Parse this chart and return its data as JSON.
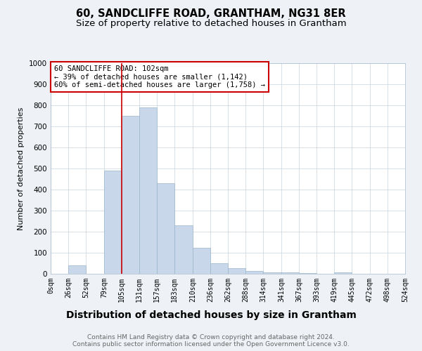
{
  "title": "60, SANDCLIFFE ROAD, GRANTHAM, NG31 8ER",
  "subtitle": "Size of property relative to detached houses in Grantham",
  "xlabel": "Distribution of detached houses by size in Grantham",
  "ylabel": "Number of detached properties",
  "bar_values": [
    0,
    40,
    0,
    490,
    750,
    790,
    430,
    230,
    125,
    50,
    28,
    12,
    8,
    8,
    5,
    0,
    8,
    0,
    0,
    0
  ],
  "bin_edges": [
    0,
    26,
    52,
    79,
    105,
    131,
    157,
    183,
    210,
    236,
    262,
    288,
    314,
    341,
    367,
    393,
    419,
    445,
    472,
    498,
    524
  ],
  "tick_labels": [
    "0sqm",
    "26sqm",
    "52sqm",
    "79sqm",
    "105sqm",
    "131sqm",
    "157sqm",
    "183sqm",
    "210sqm",
    "236sqm",
    "262sqm",
    "288sqm",
    "314sqm",
    "341sqm",
    "367sqm",
    "393sqm",
    "419sqm",
    "445sqm",
    "472sqm",
    "498sqm",
    "524sqm"
  ],
  "bar_color": "#c8d8ea",
  "bar_edge_color": "#9ab4cc",
  "property_line_x": 105,
  "property_line_color": "#cc0000",
  "annotation_text": "60 SANDCLIFFE ROAD: 102sqm\n← 39% of detached houses are smaller (1,142)\n60% of semi-detached houses are larger (1,758) →",
  "annotation_box_color": "#ffffff",
  "annotation_box_edge_color": "#cc0000",
  "ylim": [
    0,
    1000
  ],
  "yticks": [
    0,
    100,
    200,
    300,
    400,
    500,
    600,
    700,
    800,
    900,
    1000
  ],
  "footnote": "Contains HM Land Registry data © Crown copyright and database right 2024.\nContains public sector information licensed under the Open Government Licence v3.0.",
  "bg_color": "#eef2f6",
  "plot_bg_color": "#ffffff",
  "grid_color": "#c8d4de",
  "title_fontsize": 10.5,
  "subtitle_fontsize": 9.5,
  "xlabel_fontsize": 10,
  "ylabel_fontsize": 8,
  "tick_fontsize": 7,
  "footnote_fontsize": 6.5,
  "annotation_fontsize": 7.5
}
